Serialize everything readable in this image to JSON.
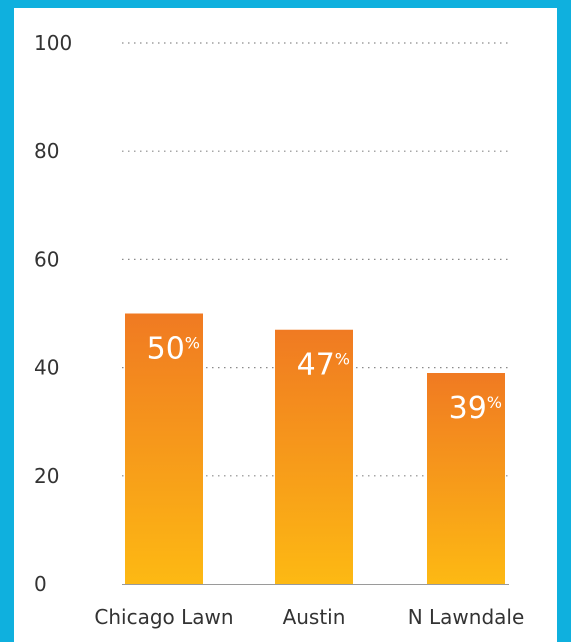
{
  "chart_data": {
    "type": "bar",
    "title": "",
    "xlabel": "",
    "ylabel": "",
    "categories": [
      "Chicago Lawn",
      "Austin",
      "N Lawndale"
    ],
    "values": [
      50,
      47,
      39
    ],
    "value_labels": [
      "50",
      "47",
      "39"
    ],
    "value_unit": "%",
    "ylim": [
      0,
      100
    ],
    "y_ticks": [
      "0",
      "20",
      "40",
      "60",
      "80",
      "100"
    ],
    "grid": "dotted horizontal",
    "legend": "none"
  },
  "colors": {
    "background": "#0fb0de",
    "panel": "#ffffff",
    "bar_top": "#f07a22",
    "bar_bottom": "#fdb913",
    "grid": "#8a8a8a",
    "text": "#333333",
    "value_text": "#ffffff"
  }
}
